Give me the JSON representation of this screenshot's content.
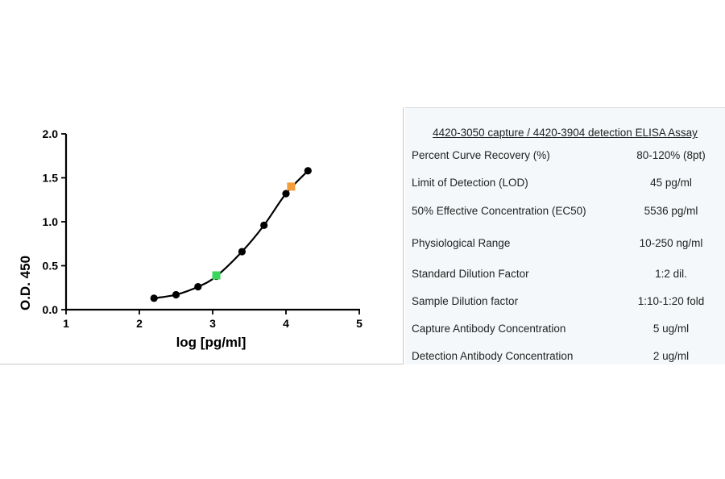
{
  "chart_data": {
    "type": "scatter",
    "xlabel": "log [pg/ml]",
    "ylabel": "O.D. 450",
    "xlim": [
      1,
      5
    ],
    "ylim": [
      0,
      2.0
    ],
    "xticks": [
      "1",
      "2",
      "3",
      "4",
      "5"
    ],
    "yticks": [
      "0.0",
      "0.5",
      "1.0",
      "1.5",
      "2.0"
    ],
    "grid": false,
    "series": [
      {
        "x": [
          2.2,
          2.5,
          2.8,
          3.05,
          3.4,
          3.7,
          4.0,
          4.3
        ],
        "y": [
          0.13,
          0.17,
          0.26,
          0.38,
          0.66,
          0.96,
          1.32,
          1.58
        ],
        "color": "#000000",
        "connected": true
      }
    ],
    "highlights": [
      {
        "x": 3.05,
        "y": 0.39,
        "color": "#39d65a"
      },
      {
        "x": 4.07,
        "y": 1.4,
        "color": "#f39c3a"
      }
    ]
  },
  "table": {
    "title": "4420-3050 capture / 4420-3904 detection ELISA Assay",
    "rows": [
      {
        "param": "Percent Curve Recovery (%)",
        "value": "80-120% (8pt)"
      },
      {
        "param": "Limit of Detection (LOD)",
        "value": "45 pg/ml"
      },
      {
        "param": "50% Effective Concentration (EC50)",
        "value": "5536 pg/ml"
      },
      {
        "param": "Physiological Range",
        "value": "10-250 ng/ml"
      },
      {
        "param": "Standard Dilution Factor",
        "value": "1:2 dil."
      },
      {
        "param": "Sample Dilution factor",
        "value": "1:10-1:20 fold"
      },
      {
        "param": "Capture Antibody Concentration",
        "value": "5 ug/ml"
      },
      {
        "param": "Detection Antibody Concentration",
        "value": "2 ug/ml"
      }
    ]
  }
}
